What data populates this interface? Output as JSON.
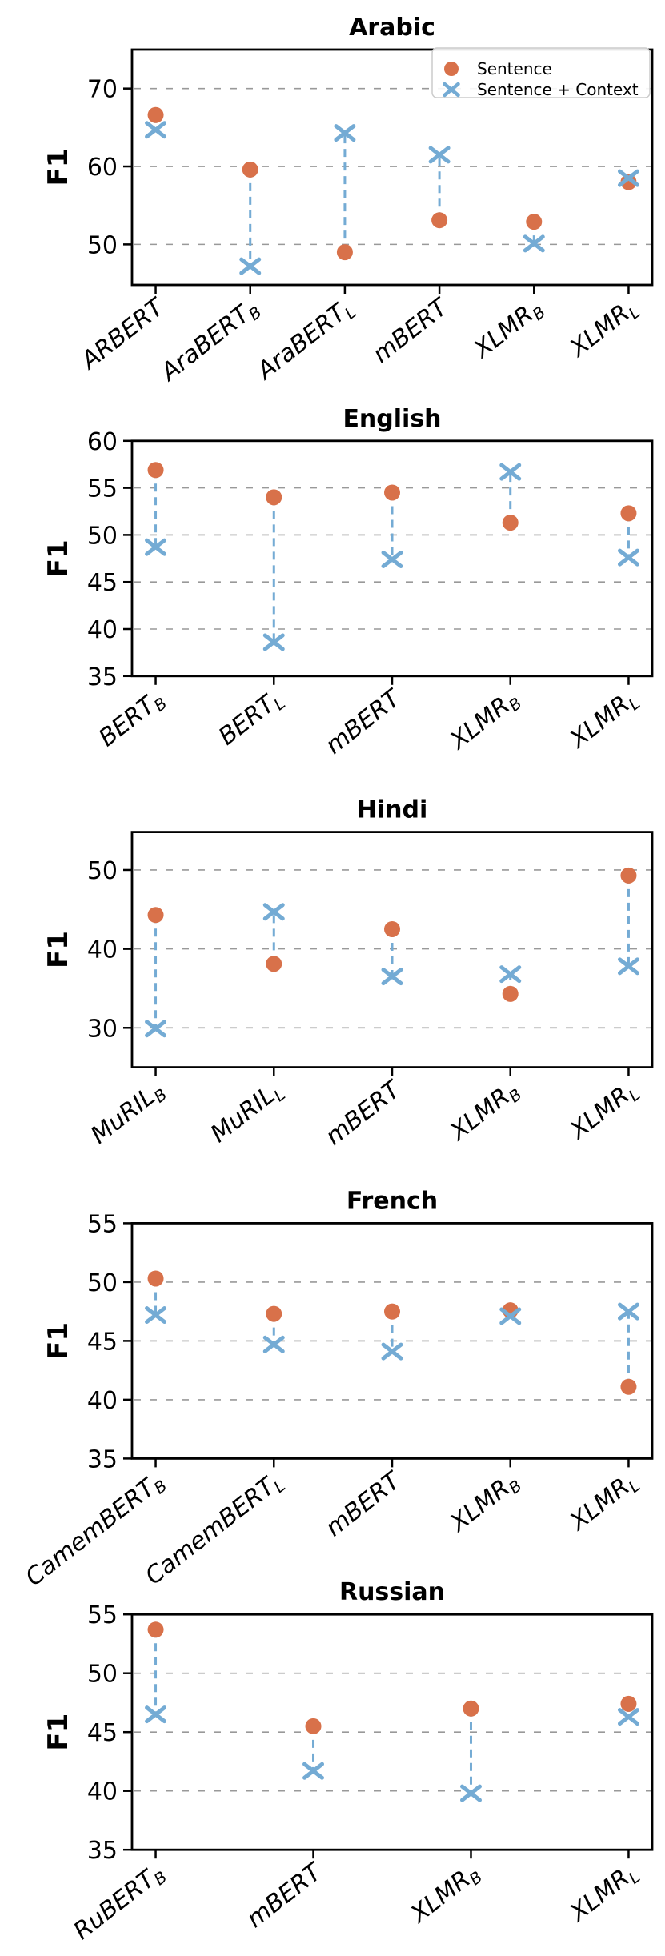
{
  "figure": {
    "ylabel": "F1",
    "legend": {
      "items": [
        {
          "label": "Sentence",
          "marker": "circle-icon"
        },
        {
          "label": "Sentence + Context",
          "marker": "x-icon"
        }
      ]
    },
    "colors": {
      "sentence": "#d8714a",
      "context": "#74abd4",
      "grid": "#999999",
      "axis": "#000000",
      "legend_border": "#cccccc",
      "background": "#ffffff"
    }
  },
  "chart_data": [
    {
      "type": "scatter",
      "title": "Arabic",
      "ylabel": "F1",
      "ylim": [
        44.8,
        75.0
      ],
      "yticks": [
        50,
        60,
        70
      ],
      "grid": true,
      "legend_position": "upper right",
      "categories": [
        "ARBERT",
        "AraBERT_B",
        "AraBERT_L",
        "mBERT",
        "XLMR_B",
        "XLMR_L"
      ],
      "series": [
        {
          "name": "Sentence",
          "values": [
            66.6,
            59.6,
            49.0,
            53.1,
            52.9,
            58.0
          ]
        },
        {
          "name": "Sentence + Context",
          "values": [
            64.7,
            47.2,
            64.3,
            61.5,
            50.1,
            58.5
          ]
        }
      ]
    },
    {
      "type": "scatter",
      "title": "English",
      "ylabel": "F1",
      "ylim": [
        35,
        60
      ],
      "yticks": [
        35,
        40,
        45,
        50,
        55,
        60
      ],
      "grid": true,
      "legend_position": "none",
      "categories": [
        "BERT_B",
        "BERT_L",
        "mBERT",
        "XLMR_B",
        "XLMR_L"
      ],
      "series": [
        {
          "name": "Sentence",
          "values": [
            56.9,
            54.0,
            54.5,
            51.3,
            52.3
          ]
        },
        {
          "name": "Sentence + Context",
          "values": [
            48.7,
            38.6,
            47.4,
            56.7,
            47.6
          ]
        }
      ]
    },
    {
      "type": "scatter",
      "title": "Hindi",
      "ylabel": "F1",
      "ylim": [
        25.0,
        54.8
      ],
      "yticks": [
        30,
        40,
        50
      ],
      "grid": true,
      "legend_position": "none",
      "categories": [
        "MuRIL_B",
        "MuRIL_L",
        "mBERT",
        "XLMR_B",
        "XLMR_L"
      ],
      "series": [
        {
          "name": "Sentence",
          "values": [
            44.3,
            38.1,
            42.5,
            34.3,
            49.3
          ]
        },
        {
          "name": "Sentence + Context",
          "values": [
            29.9,
            44.7,
            36.5,
            36.8,
            37.8
          ]
        }
      ]
    },
    {
      "type": "scatter",
      "title": "French",
      "ylabel": "F1",
      "ylim": [
        35,
        55
      ],
      "yticks": [
        35,
        40,
        45,
        50,
        55
      ],
      "grid": true,
      "legend_position": "none",
      "categories": [
        "CamemBERT_B",
        "CamemBERT_L",
        "mBERT",
        "XLMR_B",
        "XLMR_L"
      ],
      "series": [
        {
          "name": "Sentence",
          "values": [
            50.3,
            47.3,
            47.5,
            47.6,
            41.1
          ]
        },
        {
          "name": "Sentence + Context",
          "values": [
            47.2,
            44.7,
            44.1,
            47.1,
            47.5
          ]
        }
      ]
    },
    {
      "type": "scatter",
      "title": "Russian",
      "ylabel": "F1",
      "ylim": [
        35,
        55
      ],
      "yticks": [
        35,
        40,
        45,
        50,
        55
      ],
      "grid": true,
      "legend_position": "none",
      "categories": [
        "RuBERT_B",
        "mBERT",
        "XLMR_B",
        "XLMR_L"
      ],
      "series": [
        {
          "name": "Sentence",
          "values": [
            53.7,
            45.5,
            47.0,
            47.4
          ]
        },
        {
          "name": "Sentence + Context",
          "values": [
            46.5,
            41.7,
            39.8,
            46.3
          ]
        }
      ]
    }
  ]
}
